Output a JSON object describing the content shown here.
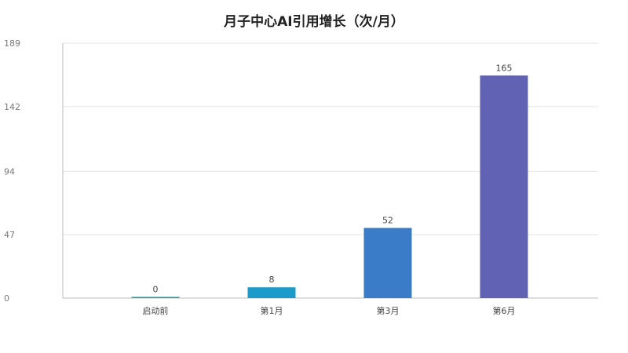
{
  "chart_data": {
    "type": "bar",
    "title": "月子中心AI引用增长（次/月）",
    "xlabel": "",
    "ylabel": "",
    "categories": [
      "启动前",
      "第1月",
      "第3月",
      "第6月"
    ],
    "values": [
      0,
      8,
      52,
      165
    ],
    "data_labels": [
      "0",
      "8",
      "52",
      "165"
    ],
    "ylim": [
      0,
      189
    ],
    "yticks": [
      0,
      47,
      94,
      142,
      189
    ],
    "grid": true,
    "legend": "none",
    "colors": [
      "#1aa39a",
      "#1a9bc9",
      "#3b7cc9",
      "#6262b5"
    ]
  }
}
